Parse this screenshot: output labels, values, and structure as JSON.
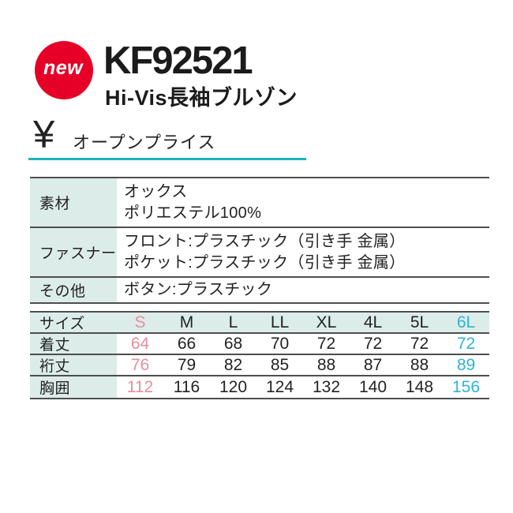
{
  "badge": {
    "label": "new"
  },
  "product": {
    "code": "KF92521",
    "name": "Hi-Vis長袖ブルゾン"
  },
  "price": {
    "currency_symbol": "¥",
    "label": "オープンプライス"
  },
  "spec_table": {
    "rows": [
      {
        "label": "素材",
        "lines": [
          "オックス",
          "ポリエステル100%"
        ]
      },
      {
        "label": "ファスナー",
        "lines": [
          "フロント:プラスチック（引き手 金属）",
          "ポケット:プラスチック（引き手 金属）"
        ]
      },
      {
        "label": "その他",
        "lines": [
          "ボタン:プラスチック"
        ]
      }
    ]
  },
  "size_table": {
    "header_label": "サイズ",
    "sizes": [
      "S",
      "M",
      "L",
      "LL",
      "XL",
      "4L",
      "5L",
      "6L"
    ],
    "rows": [
      {
        "label": "着丈",
        "values": [
          "64",
          "66",
          "68",
          "70",
          "72",
          "72",
          "72",
          "72"
        ]
      },
      {
        "label": "裄丈",
        "values": [
          "76",
          "79",
          "82",
          "85",
          "88",
          "87",
          "88",
          "89"
        ]
      },
      {
        "label": "胸囲",
        "values": [
          "112",
          "116",
          "120",
          "124",
          "132",
          "140",
          "148",
          "156"
        ]
      }
    ]
  },
  "colors": {
    "badge_red": "#e60027",
    "mint_background": "#dcece9",
    "table_line": "#4e4e4e",
    "size_s_pink": "#e78e9d",
    "size_6l_cyan": "#2eb3d8",
    "price_underline_teal": "#1bb2bd",
    "text": "#222222"
  }
}
